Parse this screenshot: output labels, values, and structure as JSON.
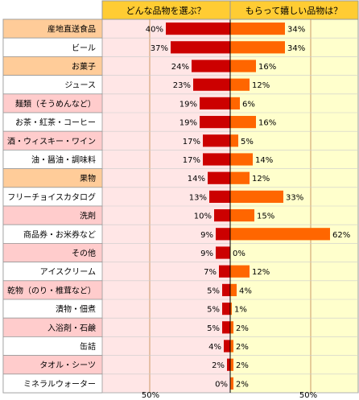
{
  "chart_data": {
    "type": "bar",
    "layout": "back-to-back horizontal bar",
    "headers": [
      "どんな品物を選ぶ？",
      "もらって嬉しい品物は？"
    ],
    "categories": [
      "産地直送食品",
      "ビール",
      "お菓子",
      "ジュース",
      "麺類（そうめんなど）",
      "お茶・紅茶・コーヒー",
      "酒・ウィスキー・ワイン",
      "油・醤油・調味料",
      "果物",
      "フリーチョイスカタログ",
      "洗剤",
      "商品券・お米券など",
      "その他",
      "アイスクリーム",
      "乾物（のり・椎茸など）",
      "漬物・佃煮",
      "入浴剤・石鹸",
      "缶詰",
      "タオル・シーツ",
      "ミネラルウォーター"
    ],
    "series": [
      {
        "name": "どんな品物を選ぶ？",
        "values": [
          40,
          37,
          24,
          23,
          19,
          19,
          17,
          17,
          14,
          13,
          10,
          9,
          9,
          7,
          5,
          5,
          5,
          4,
          2,
          0
        ],
        "color": "#cc0000"
      },
      {
        "name": "もらって嬉しい品物は？",
        "values": [
          34,
          34,
          16,
          12,
          6,
          16,
          5,
          14,
          12,
          33,
          15,
          62,
          0,
          12,
          4,
          1,
          2,
          2,
          2,
          2
        ],
        "color": "#ff6600"
      }
    ],
    "value_suffix": "%",
    "axis_label": "50%",
    "xlim": [
      0,
      80
    ]
  },
  "colors": {
    "header_bg": "#ffcc33",
    "label_pink": "#ffcccc",
    "label_orange": "#ffcc99",
    "label_white": "#ffffff",
    "left_area": "#ffe6e6",
    "right_area": "#ffffcc",
    "gridline": "#cc9966",
    "border": "#999999"
  }
}
